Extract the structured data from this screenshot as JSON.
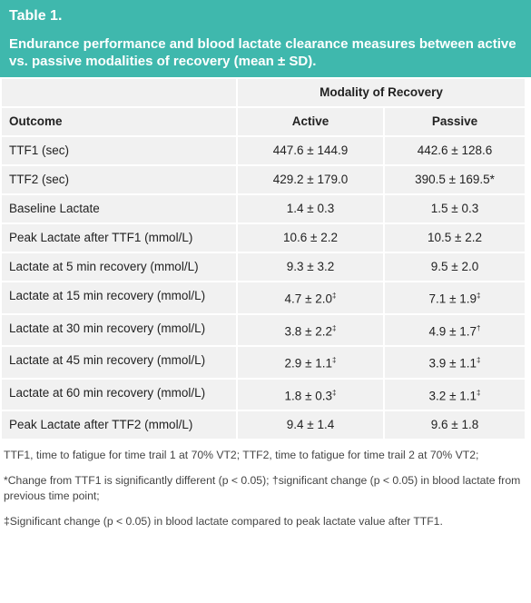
{
  "header": {
    "label": "Table 1.",
    "title": "Endurance performance and blood lactate clearance measures between active vs. passive modalities of recovery (mean ± SD)."
  },
  "table": {
    "group_header": "Modality of Recovery",
    "columns": [
      "Outcome",
      "Active",
      "Passive"
    ],
    "rows": [
      [
        {
          "text": "TTF1 (sec)"
        },
        {
          "text": "447.6 ± 144.9"
        },
        {
          "text": "442.6 ± 128.6"
        }
      ],
      [
        {
          "text": "TTF2 (sec)"
        },
        {
          "text": "429.2 ± 179.0"
        },
        {
          "text": "390.5 ± 169.5*"
        }
      ],
      [
        {
          "text": "Baseline Lactate"
        },
        {
          "text": "1.4 ± 0.3"
        },
        {
          "text": "1.5 ± 0.3"
        }
      ],
      [
        {
          "text": "Peak Lactate after TTF1 (mmol/L)"
        },
        {
          "text": "10.6 ± 2.2"
        },
        {
          "text": "10.5 ± 2.2"
        }
      ],
      [
        {
          "text": "Lactate at 5 min recovery (mmol/L)"
        },
        {
          "text": "9.3 ± 3.2"
        },
        {
          "text": "9.5 ± 2.0"
        }
      ],
      [
        {
          "text": "Lactate at 15 min recovery (mmol/L)"
        },
        {
          "text": "4.7 ± 2.0",
          "sup": "‡"
        },
        {
          "text": "7.1 ± 1.9",
          "sup": "‡"
        }
      ],
      [
        {
          "text": "Lactate at 30 min recovery (mmol/L)"
        },
        {
          "text": "3.8 ± 2.2",
          "sup": "‡"
        },
        {
          "text": "4.9 ± 1.7",
          "sup": "†"
        }
      ],
      [
        {
          "text": "Lactate at 45 min recovery (mmol/L)"
        },
        {
          "text": "2.9 ± 1.1",
          "sup": "‡"
        },
        {
          "text": "3.9 ± 1.1",
          "sup": "‡"
        }
      ],
      [
        {
          "text": "Lactate at 60 min recovery (mmol/L)"
        },
        {
          "text": "1.8 ± 0.3",
          "sup": "‡"
        },
        {
          "text": "3.2 ± 1.1",
          "sup": "‡"
        }
      ],
      [
        {
          "text": "Peak Lactate after TTF2 (mmol/L)"
        },
        {
          "text": "9.4 ± 1.4"
        },
        {
          "text": "9.6 ± 1.8"
        }
      ]
    ]
  },
  "footnotes": [
    "TTF1, time to fatigue for time trail 1 at 70% VT2; TTF2, time to fatigue for time trail 2 at 70% VT2;",
    "*Change from TTF1 is significantly different (p < 0.05); †significant change (p < 0.05) in blood lactate from previous time point;",
    "‡Significant change (p < 0.05) in blood lactate compared to peak lactate value after TTF1."
  ]
}
